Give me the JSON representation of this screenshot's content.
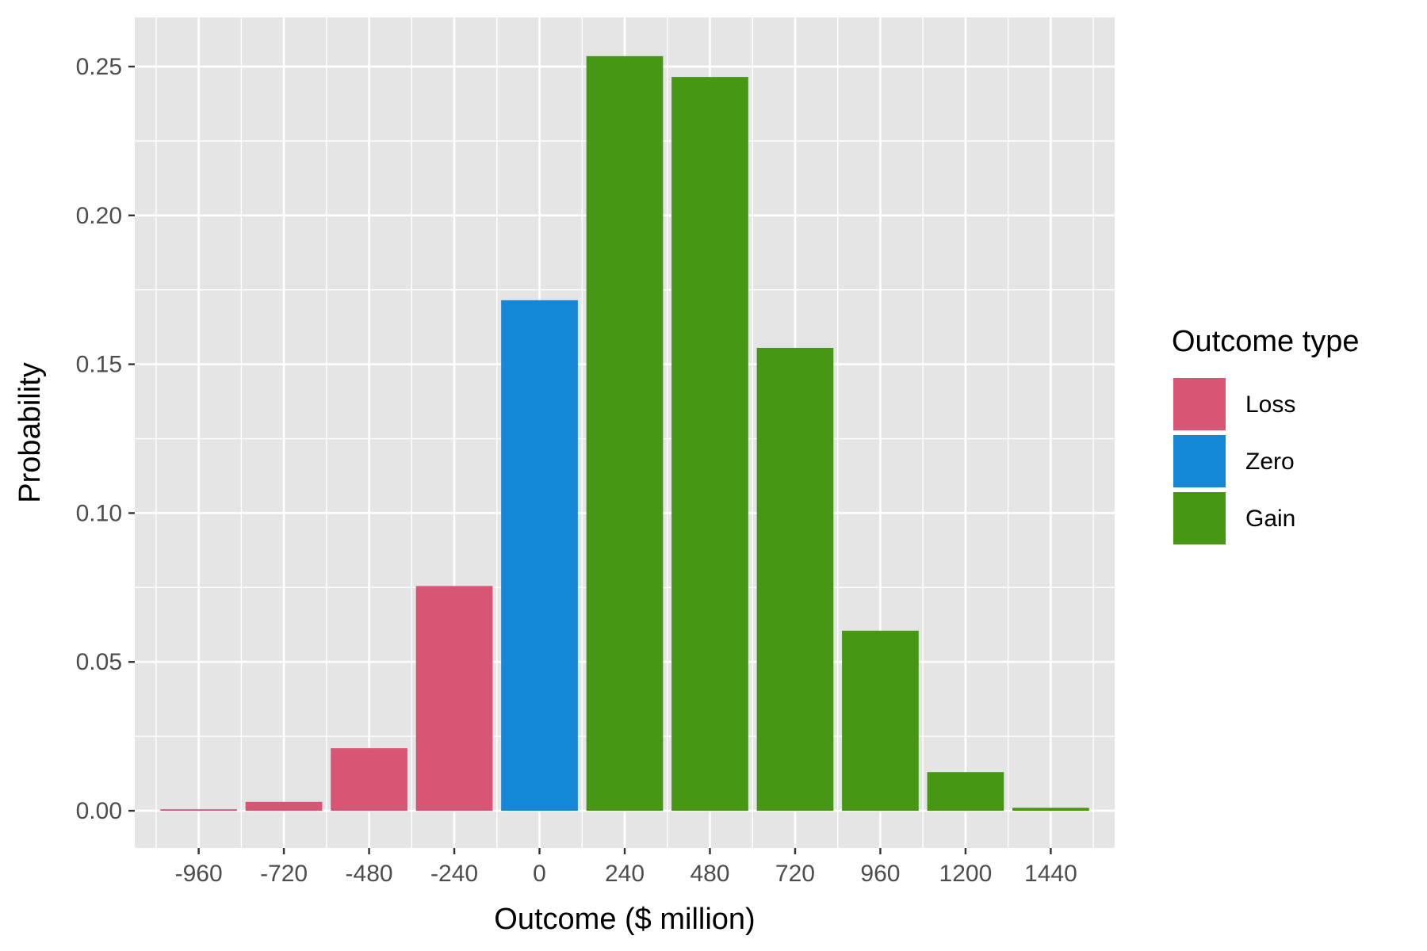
{
  "chart_data": {
    "type": "bar",
    "title": "",
    "xlabel": "Outcome ($ million)",
    "ylabel": "Probability",
    "categories": [
      "-960",
      "-720",
      "-480",
      "-240",
      "0",
      "240",
      "480",
      "720",
      "960",
      "1200",
      "1440"
    ],
    "x": [
      -960,
      -720,
      -480,
      -240,
      0,
      240,
      480,
      720,
      960,
      1200,
      1440
    ],
    "values": [
      0.0005,
      0.003,
      0.021,
      0.0755,
      0.1715,
      0.2535,
      0.2465,
      0.1555,
      0.0605,
      0.013,
      0.001
    ],
    "groups": [
      "Loss",
      "Loss",
      "Loss",
      "Loss",
      "Zero",
      "Gain",
      "Gain",
      "Gain",
      "Gain",
      "Gain",
      "Gain"
    ],
    "ylim": [
      -0.0125,
      0.2665
    ],
    "yticks": [
      0.0,
      0.05,
      0.1,
      0.15,
      0.2,
      0.25
    ],
    "ytick_labels": [
      "0.00",
      "0.05",
      "0.10",
      "0.15",
      "0.20",
      "0.25"
    ],
    "grid": true,
    "legend": {
      "title": "Outcome type",
      "position": "right",
      "entries": [
        {
          "label": "Loss",
          "color": "#D95574"
        },
        {
          "label": "Zero",
          "color": "#1487D6"
        },
        {
          "label": "Gain",
          "color": "#459714"
        }
      ]
    }
  },
  "colors": {
    "panel_background": "#E5E5E5",
    "grid": "#FFFFFF",
    "tick_text": "#4D4D4D",
    "tick_mark": "#333333"
  }
}
